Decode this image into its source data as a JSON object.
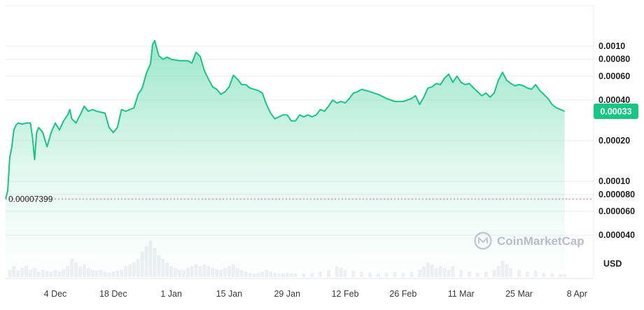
{
  "chart_data": {
    "type": "area",
    "y_scale": "log",
    "currency_label": "USD",
    "watermark": "CoinMarketCap",
    "start_price_label": "0.00007399",
    "current_price_label": "0.00033",
    "y_ticks": [
      {
        "value": 0.001,
        "label": "0.0010"
      },
      {
        "value": 0.0008,
        "label": "0.00080"
      },
      {
        "value": 0.0006,
        "label": "0.00060"
      },
      {
        "value": 0.0004,
        "label": "0.00040"
      },
      {
        "value": 0.0002,
        "label": "0.00020"
      },
      {
        "value": 0.0001,
        "label": "0.00010"
      },
      {
        "value": 8e-05,
        "label": "0.000080"
      },
      {
        "value": 6e-05,
        "label": "0.000060"
      },
      {
        "value": 4e-05,
        "label": "0.000040"
      }
    ],
    "x_ticks": [
      {
        "x": 12,
        "label": "4 Dec"
      },
      {
        "x": 26,
        "label": "18 Dec"
      },
      {
        "x": 40,
        "label": "1 Jan"
      },
      {
        "x": 54,
        "label": "15 Jan"
      },
      {
        "x": 68,
        "label": "29 Jan"
      },
      {
        "x": 82,
        "label": "12 Feb"
      },
      {
        "x": 96,
        "label": "26 Feb"
      },
      {
        "x": 110,
        "label": "11 Mar"
      },
      {
        "x": 124,
        "label": "25 Mar"
      },
      {
        "x": 138,
        "label": "8 Apr"
      }
    ],
    "x_range": [
      0,
      142
    ],
    "series": [
      {
        "color": "#16c784",
        "points": [
          [
            0,
            7.4e-05
          ],
          [
            0.5,
            8.5e-05
          ],
          [
            1,
            0.00015
          ],
          [
            1.5,
            0.00018
          ],
          [
            2,
            0.00024
          ],
          [
            2.5,
            0.00026
          ],
          [
            3,
            0.00027
          ],
          [
            4,
            0.000265
          ],
          [
            5,
            0.00027
          ],
          [
            6,
            0.00027
          ],
          [
            6.5,
            0.00021
          ],
          [
            7,
            0.000145
          ],
          [
            7.5,
            0.00023
          ],
          [
            8,
            0.00025
          ],
          [
            9,
            0.00023
          ],
          [
            10,
            0.00018
          ],
          [
            11,
            0.00023
          ],
          [
            12,
            0.00027
          ],
          [
            13,
            0.00024
          ],
          [
            14,
            0.00028
          ],
          [
            15,
            0.00031
          ],
          [
            15.5,
            0.00034
          ],
          [
            16,
            0.00029
          ],
          [
            17,
            0.00027
          ],
          [
            18,
            0.00031
          ],
          [
            19,
            0.00036
          ],
          [
            20,
            0.00033
          ],
          [
            21,
            0.00034
          ],
          [
            22,
            0.00033
          ],
          [
            24,
            0.00032
          ],
          [
            25,
            0.00025
          ],
          [
            26,
            0.00023
          ],
          [
            27,
            0.00025
          ],
          [
            28,
            0.00034
          ],
          [
            29,
            0.00033
          ],
          [
            30,
            0.00034
          ],
          [
            31,
            0.00035
          ],
          [
            32,
            0.00044
          ],
          [
            33,
            0.00049
          ],
          [
            34,
            0.00063
          ],
          [
            35,
            0.00074
          ],
          [
            35.5,
            0.00103
          ],
          [
            36,
            0.0011
          ],
          [
            37,
            0.00085
          ],
          [
            38,
            0.0008
          ],
          [
            39,
            0.00083
          ],
          [
            40,
            0.0008
          ],
          [
            42,
            0.00078
          ],
          [
            44,
            0.00078
          ],
          [
            45,
            0.00075
          ],
          [
            46,
            0.0009
          ],
          [
            47,
            0.00084
          ],
          [
            48,
            0.00066
          ],
          [
            49,
            0.00057
          ],
          [
            50,
            0.0005
          ],
          [
            51,
            0.00048
          ],
          [
            52,
            0.00044
          ],
          [
            53,
            0.00046
          ],
          [
            54,
            0.0005
          ],
          [
            55,
            0.00061
          ],
          [
            56,
            0.00057
          ],
          [
            57,
            0.00052
          ],
          [
            58,
            0.00052
          ],
          [
            59,
            0.00049
          ],
          [
            60,
            0.00048
          ],
          [
            61,
            0.00047
          ],
          [
            62,
            0.00045
          ],
          [
            63,
            0.00037
          ],
          [
            64,
            0.00032
          ],
          [
            65,
            0.00029
          ],
          [
            66,
            0.0003
          ],
          [
            67,
            0.00031
          ],
          [
            68,
            0.00031
          ],
          [
            69,
            0.00028
          ],
          [
            70,
            0.00028
          ],
          [
            71,
            0.00031
          ],
          [
            72,
            0.0003
          ],
          [
            73,
            0.00031
          ],
          [
            74,
            0.0003
          ],
          [
            75,
            0.00031
          ],
          [
            76,
            0.00034
          ],
          [
            77,
            0.00033
          ],
          [
            78,
            0.00036
          ],
          [
            79,
            0.0004
          ],
          [
            80,
            0.00038
          ],
          [
            81,
            0.00039
          ],
          [
            82,
            0.00038
          ],
          [
            83,
            0.00041
          ],
          [
            84,
            0.00045
          ],
          [
            85,
            0.00046
          ],
          [
            86,
            0.00048
          ],
          [
            87,
            0.00047
          ],
          [
            88,
            0.00046
          ],
          [
            90,
            0.00044
          ],
          [
            92,
            0.00041
          ],
          [
            94,
            0.00039
          ],
          [
            96,
            0.00039
          ],
          [
            98,
            0.00041
          ],
          [
            99,
            0.00043
          ],
          [
            100,
            0.00037
          ],
          [
            101,
            0.00042
          ],
          [
            102,
            0.00049
          ],
          [
            103,
            0.0005
          ],
          [
            104,
            0.00053
          ],
          [
            105,
            0.00052
          ],
          [
            106,
            0.00058
          ],
          [
            107,
            0.00062
          ],
          [
            108,
            0.00054
          ],
          [
            109,
            0.0006
          ],
          [
            110,
            0.00054
          ],
          [
            111,
            0.00052
          ],
          [
            112,
            0.00053
          ],
          [
            113,
            0.00049
          ],
          [
            114,
            0.00046
          ],
          [
            115,
            0.00043
          ],
          [
            116,
            0.00045
          ],
          [
            117,
            0.00042
          ],
          [
            118,
            0.00045
          ],
          [
            119,
            0.00056
          ],
          [
            120,
            0.00064
          ],
          [
            121,
            0.00056
          ],
          [
            122,
            0.00053
          ],
          [
            123,
            0.00051
          ],
          [
            124,
            0.00052
          ],
          [
            125,
            0.00051
          ],
          [
            126,
            0.00049
          ],
          [
            127,
            0.00048
          ],
          [
            128,
            0.00052
          ],
          [
            129,
            0.00047
          ],
          [
            130,
            0.00044
          ],
          [
            131,
            0.00041
          ],
          [
            132,
            0.00037
          ],
          [
            133,
            0.00035
          ],
          [
            134,
            0.00034
          ],
          [
            135,
            0.00033
          ]
        ]
      }
    ],
    "volume": [
      [
        1,
        0.2
      ],
      [
        2,
        0.3
      ],
      [
        3,
        0.18
      ],
      [
        4,
        0.25
      ],
      [
        5,
        0.3
      ],
      [
        6,
        0.2
      ],
      [
        7,
        0.25
      ],
      [
        8,
        0.15
      ],
      [
        9,
        0.2
      ],
      [
        10,
        0.18
      ],
      [
        11,
        0.15
      ],
      [
        12,
        0.2
      ],
      [
        13,
        0.16
      ],
      [
        14,
        0.22
      ],
      [
        15,
        0.3
      ],
      [
        16,
        0.5
      ],
      [
        17,
        0.4
      ],
      [
        18,
        0.3
      ],
      [
        19,
        0.35
      ],
      [
        20,
        0.25
      ],
      [
        21,
        0.2
      ],
      [
        22,
        0.18
      ],
      [
        23,
        0.2
      ],
      [
        24,
        0.15
      ],
      [
        25,
        0.12
      ],
      [
        26,
        0.15
      ],
      [
        27,
        0.18
      ],
      [
        28,
        0.2
      ],
      [
        29,
        0.3
      ],
      [
        30,
        0.35
      ],
      [
        31,
        0.4
      ],
      [
        32,
        0.5
      ],
      [
        33,
        0.7
      ],
      [
        34,
        0.85
      ],
      [
        35,
        1.0
      ],
      [
        36,
        0.8
      ],
      [
        37,
        0.6
      ],
      [
        38,
        0.5
      ],
      [
        39,
        0.4
      ],
      [
        40,
        0.3
      ],
      [
        41,
        0.25
      ],
      [
        42,
        0.2
      ],
      [
        43,
        0.2
      ],
      [
        44,
        0.25
      ],
      [
        45,
        0.3
      ],
      [
        46,
        0.35
      ],
      [
        47,
        0.3
      ],
      [
        48,
        0.35
      ],
      [
        49,
        0.3
      ],
      [
        50,
        0.25
      ],
      [
        51,
        0.22
      ],
      [
        52,
        0.2
      ],
      [
        53,
        0.25
      ],
      [
        54,
        0.3
      ],
      [
        55,
        0.35
      ],
      [
        56,
        0.25
      ],
      [
        57,
        0.2
      ],
      [
        58,
        0.15
      ],
      [
        59,
        0.12
      ],
      [
        60,
        0.1
      ],
      [
        61,
        0.12
      ],
      [
        62,
        0.15
      ],
      [
        63,
        0.2
      ],
      [
        64,
        0.15
      ],
      [
        65,
        0.12
      ],
      [
        66,
        0.1
      ],
      [
        67,
        0.1
      ],
      [
        68,
        0.12
      ],
      [
        69,
        0.1
      ],
      [
        70,
        0.1
      ],
      [
        72,
        0.1
      ],
      [
        74,
        0.12
      ],
      [
        76,
        0.15
      ],
      [
        78,
        0.2
      ],
      [
        80,
        0.3
      ],
      [
        81,
        0.25
      ],
      [
        82,
        0.2
      ],
      [
        84,
        0.18
      ],
      [
        86,
        0.15
      ],
      [
        88,
        0.12
      ],
      [
        90,
        0.1
      ],
      [
        92,
        0.12
      ],
      [
        94,
        0.15
      ],
      [
        96,
        0.12
      ],
      [
        98,
        0.15
      ],
      [
        100,
        0.2
      ],
      [
        101,
        0.3
      ],
      [
        102,
        0.4
      ],
      [
        103,
        0.35
      ],
      [
        104,
        0.25
      ],
      [
        105,
        0.3
      ],
      [
        106,
        0.25
      ],
      [
        107,
        0.2
      ],
      [
        108,
        0.3
      ],
      [
        110,
        0.2
      ],
      [
        112,
        0.15
      ],
      [
        114,
        0.12
      ],
      [
        116,
        0.15
      ],
      [
        118,
        0.2
      ],
      [
        119,
        0.3
      ],
      [
        120,
        0.45
      ],
      [
        121,
        0.35
      ],
      [
        122,
        0.25
      ],
      [
        124,
        0.2
      ],
      [
        126,
        0.15
      ],
      [
        128,
        0.18
      ],
      [
        130,
        0.12
      ],
      [
        132,
        0.1
      ],
      [
        134,
        0.08
      ],
      [
        135,
        0.08
      ]
    ]
  }
}
